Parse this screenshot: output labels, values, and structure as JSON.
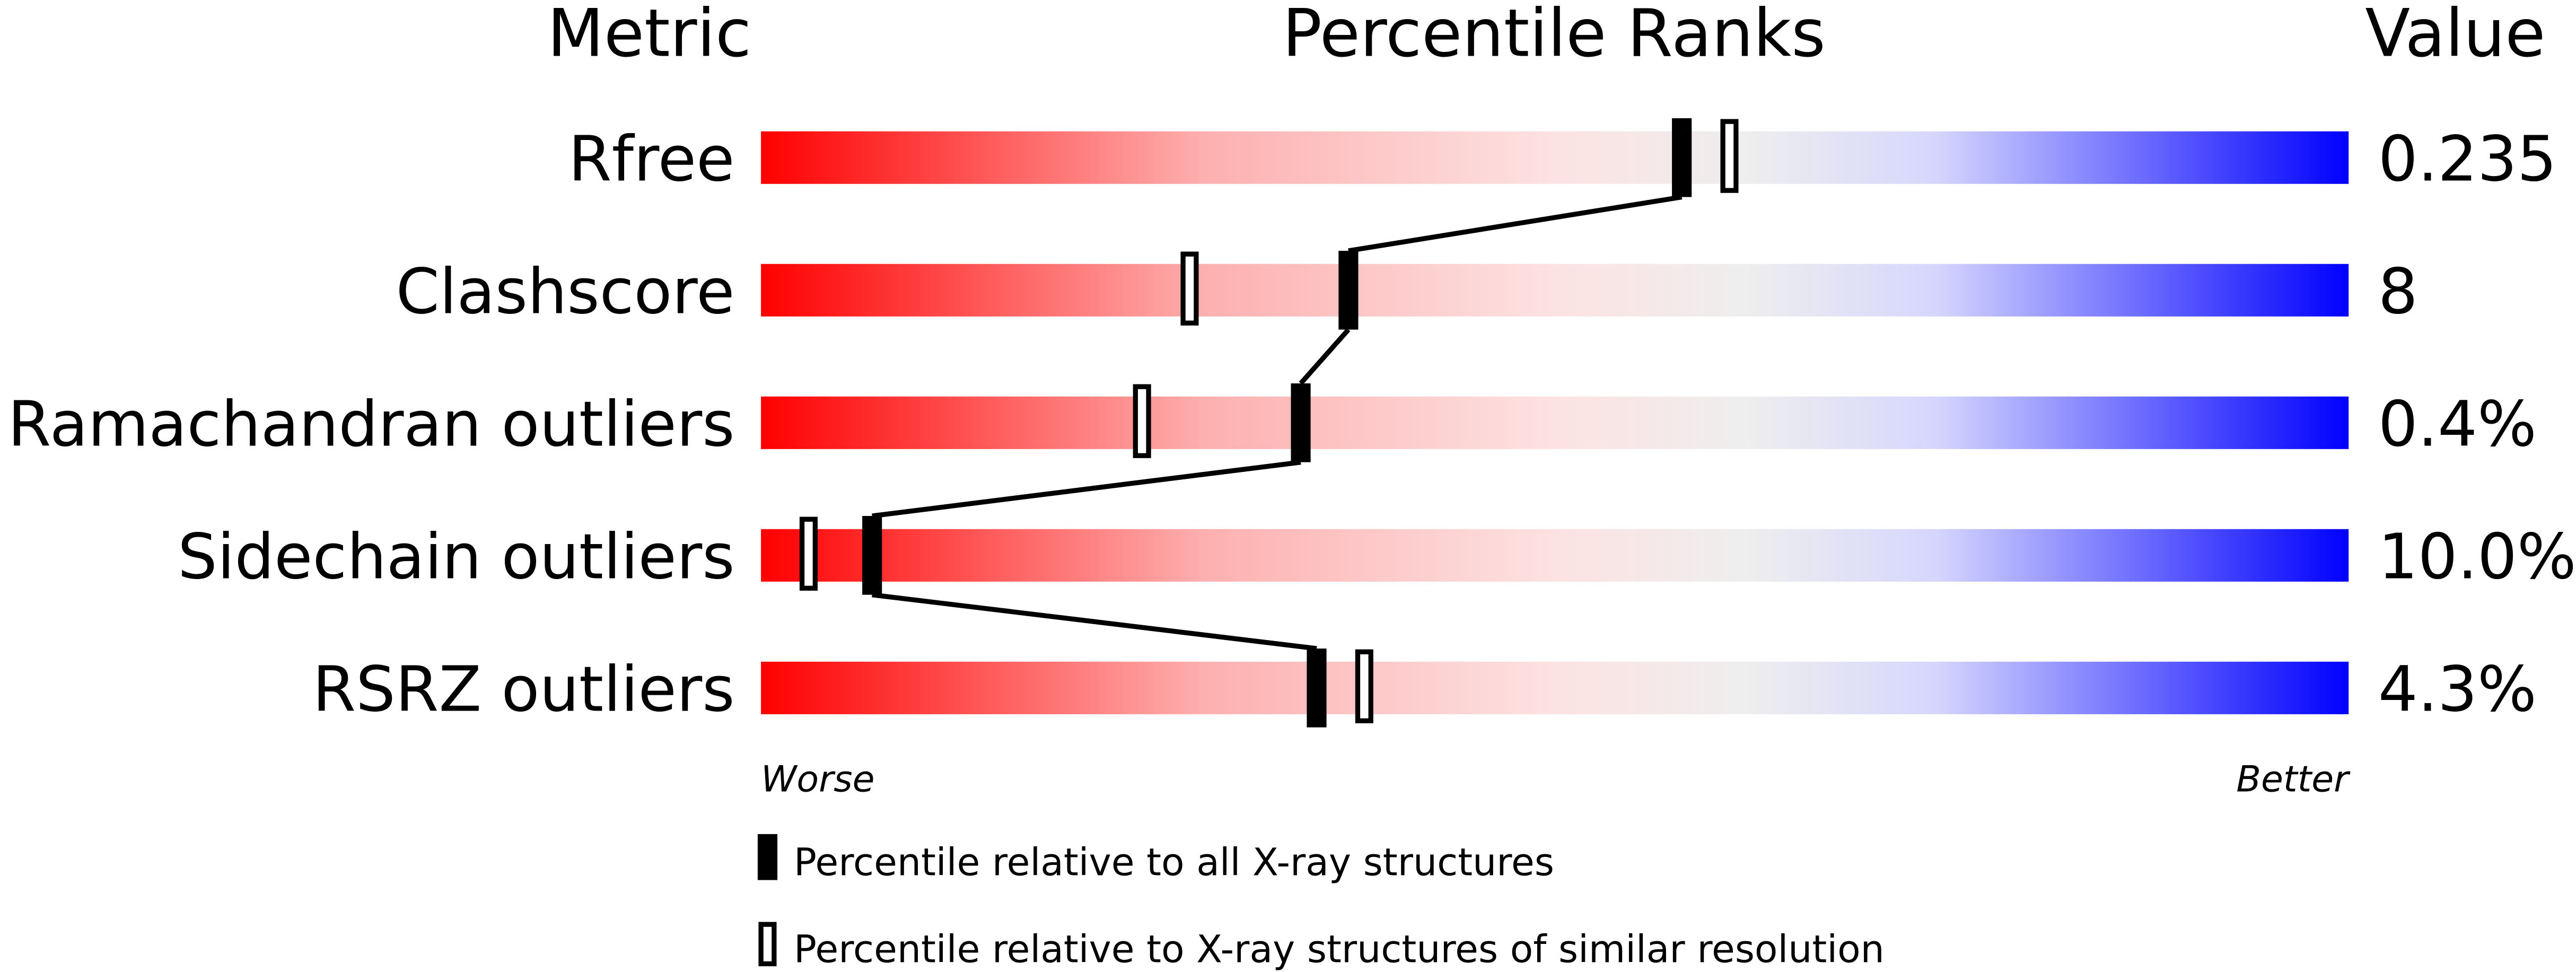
{
  "chart_data": {
    "type": "percentile-slider",
    "headers": {
      "metric": "Metric",
      "ranks": "Percentile Ranks",
      "value": "Value"
    },
    "axis": {
      "min": 0,
      "max": 100,
      "left_label": "Worse",
      "right_label": "Better"
    },
    "gradient_colors": [
      "#ff0000",
      "#fdd4d4",
      "#eeeeee",
      "#d6d6ff",
      "#0000ff"
    ],
    "metrics": [
      {
        "name": "Rfree",
        "value": "0.235",
        "percentile_all": 58,
        "percentile_similar": 61
      },
      {
        "name": "Clashscore",
        "value": "8",
        "percentile_all": 37,
        "percentile_similar": 27
      },
      {
        "name": "Ramachandran outliers",
        "value": "0.4%",
        "percentile_all": 34,
        "percentile_similar": 24
      },
      {
        "name": "Sidechain outliers",
        "value": "10.0%",
        "percentile_all": 7,
        "percentile_similar": 3
      },
      {
        "name": "RSRZ outliers",
        "value": "4.3%",
        "percentile_all": 35,
        "percentile_similar": 38
      }
    ],
    "legend": [
      {
        "marker": "filled",
        "label": "Percentile relative to all X-ray structures"
      },
      {
        "marker": "open",
        "label": "Percentile relative to X-ray structures of similar resolution"
      }
    ]
  }
}
